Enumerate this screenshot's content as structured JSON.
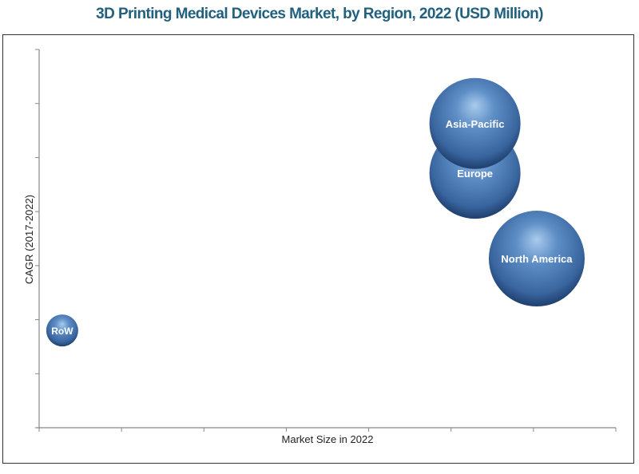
{
  "chart_data": {
    "type": "bubble",
    "title": "3D Printing Medical Devices Market, by Region, 2022 (USD Million)",
    "xlabel": "Market Size in 2022",
    "ylabel": "CAGR (2017-2022)",
    "xlim": [
      0,
      7
    ],
    "ylim": [
      0,
      7
    ],
    "grid": false,
    "bubble_color": "#3f6fa8",
    "series": [
      {
        "label": "RoW",
        "x": 0.28,
        "y": 1.8,
        "size": 20
      },
      {
        "label": "Europe",
        "x": 5.29,
        "y": 4.71,
        "size": 57
      },
      {
        "label": "Asia-Pacific",
        "x": 5.29,
        "y": 5.63,
        "size": 57
      },
      {
        "label": "North America",
        "x": 6.04,
        "y": 3.13,
        "size": 60
      }
    ]
  }
}
